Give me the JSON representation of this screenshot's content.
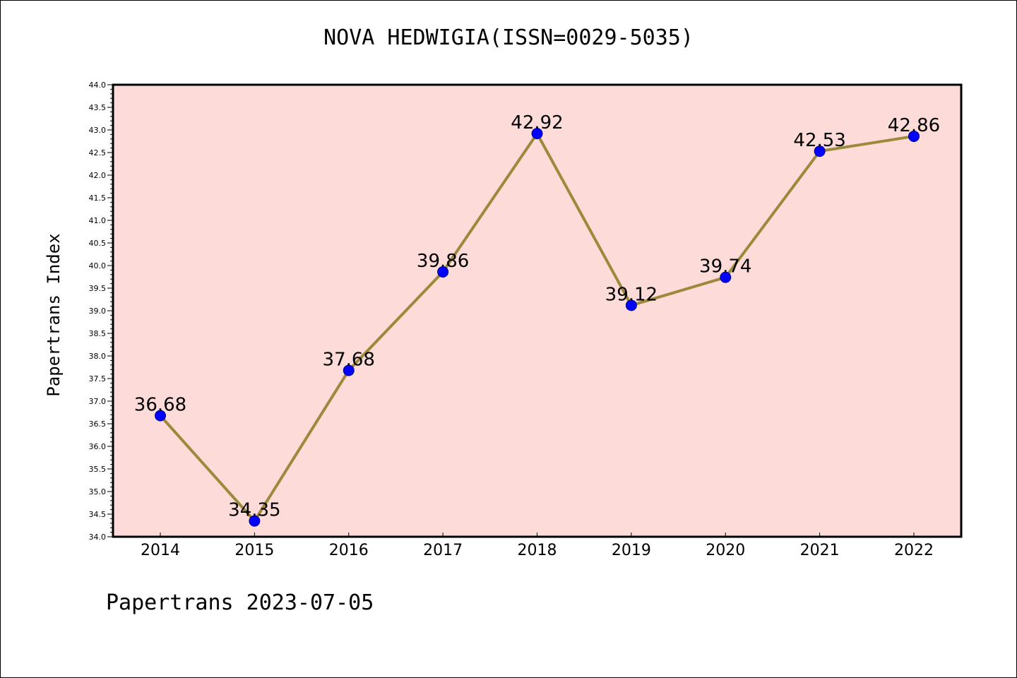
{
  "title": "NOVA HEDWIGIA(ISSN=0029-5035)",
  "footer": "Papertrans 2023-07-05",
  "colors": {
    "plot_background": "#fddbd9",
    "line": "#9b8a3b",
    "marker": "#0000ff",
    "marker_edge": "#00008b"
  },
  "chart_data": {
    "type": "line",
    "title": "NOVA HEDWIGIA(ISSN=0029-5035)",
    "xlabel": "",
    "ylabel": "Papertrans Index",
    "categories": [
      "2014",
      "2015",
      "2016",
      "2017",
      "2018",
      "2019",
      "2020",
      "2021",
      "2022"
    ],
    "series": [
      {
        "values": [
          36.68,
          34.35,
          37.68,
          39.86,
          42.92,
          39.12,
          39.74,
          42.53,
          42.86
        ],
        "labels": [
          "36.68",
          "34.35",
          "37.68",
          "39.86",
          "42.92",
          "39.12",
          "39.74",
          "42.53",
          "42.86"
        ]
      }
    ],
    "ylim": [
      34.0,
      44.0
    ],
    "ytick_step": 0.5,
    "grid": false,
    "legend": "none"
  }
}
